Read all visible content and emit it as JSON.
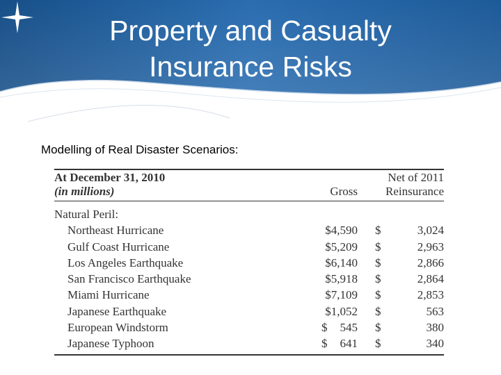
{
  "slide": {
    "title_line1": "Property and Casualty",
    "title_line2": "Insurance Risks",
    "subtitle": "Modelling of Real Disaster Scenarios:",
    "colors": {
      "header_blue": "#1f5f9e",
      "header_dark": "#154a80",
      "text": "#333333"
    }
  },
  "table": {
    "header": {
      "date": "At December 31, 2010",
      "units": "(in millions)",
      "gross": "Gross",
      "net_line1": "Net of 2011",
      "net_line2": "Reinsurance"
    },
    "group_label": "Natural Peril:",
    "rows": [
      {
        "name": "Northeast Hurricane",
        "gross_sym": "",
        "gross": "$4,590",
        "net_sym": "$",
        "net": "3,024"
      },
      {
        "name": "Gulf Coast Hurricane",
        "gross_sym": "",
        "gross": "$5,209",
        "net_sym": "$",
        "net": "2,963"
      },
      {
        "name": "Los Angeles Earthquake",
        "gross_sym": "",
        "gross": "$6,140",
        "net_sym": "$",
        "net": "2,866"
      },
      {
        "name": "San Francisco Earthquake",
        "gross_sym": "",
        "gross": "$5,918",
        "net_sym": "$",
        "net": "2,864"
      },
      {
        "name": "Miami Hurricane",
        "gross_sym": "",
        "gross": "$7,109",
        "net_sym": "$",
        "net": "2,853"
      },
      {
        "name": "Japanese Earthquake",
        "gross_sym": "",
        "gross": "$1,052",
        "net_sym": "$",
        "net": "563"
      },
      {
        "name": "European Windstorm",
        "gross_sym": "$",
        "gross": "545",
        "net_sym": "$",
        "net": "380"
      },
      {
        "name": "Japanese Typhoon",
        "gross_sym": "$",
        "gross": "641",
        "net_sym": "$",
        "net": "340"
      }
    ]
  }
}
